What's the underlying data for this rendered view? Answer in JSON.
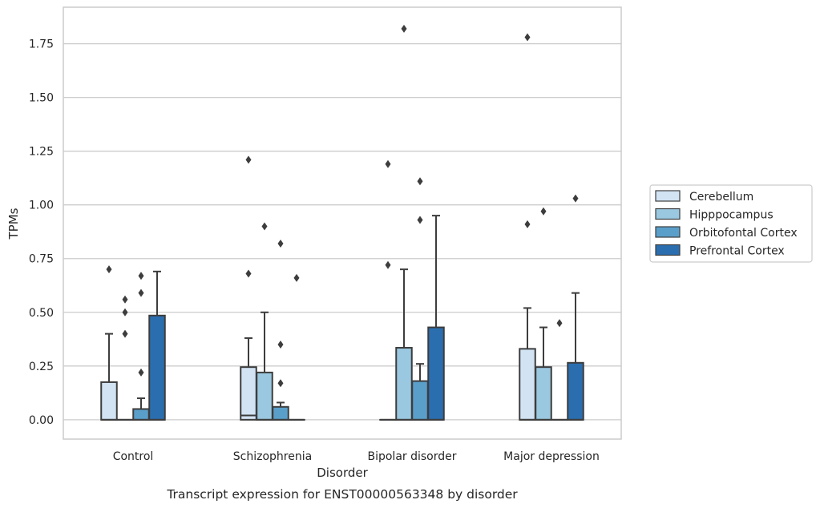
{
  "chart_data": {
    "type": "boxplot",
    "caption": "Transcript expression for ENST00000563348 by disorder",
    "xlabel": "Disorder",
    "ylabel": "TPMs",
    "ylim": [
      -0.09,
      1.92
    ],
    "yticks": [
      0.0,
      0.25,
      0.5,
      0.75,
      1.0,
      1.25,
      1.5,
      1.75
    ],
    "ytick_labels": [
      "0.00",
      "0.25",
      "0.50",
      "0.75",
      "1.00",
      "1.25",
      "1.50",
      "1.75"
    ],
    "grid": true,
    "legend_position": "right",
    "categories": [
      "Control",
      "Schizophrenia",
      "Bipolar disorder",
      "Major depression"
    ],
    "series": [
      {
        "name": "Cerebellum",
        "color": "#d2e3f3",
        "boxes": [
          {
            "q1": 0.0,
            "median": 0.0,
            "q3": 0.175,
            "whisker_low": 0.0,
            "whisker_high": 0.4,
            "outliers": [
              0.7
            ]
          },
          {
            "q1": 0.0,
            "median": 0.02,
            "q3": 0.245,
            "whisker_low": 0.0,
            "whisker_high": 0.38,
            "outliers": [
              1.21,
              0.68
            ]
          },
          {
            "q1": 0.0,
            "median": 0.0,
            "q3": 0.0,
            "whisker_low": 0.0,
            "whisker_high": 0.0,
            "outliers": [
              1.19,
              0.72
            ]
          },
          {
            "q1": 0.0,
            "median": 0.0,
            "q3": 0.33,
            "whisker_low": 0.0,
            "whisker_high": 0.52,
            "outliers": [
              1.78,
              0.91
            ]
          }
        ]
      },
      {
        "name": "Hipppocampus",
        "color": "#9ac8e0",
        "boxes": [
          {
            "q1": 0.0,
            "median": 0.0,
            "q3": 0.0,
            "whisker_low": 0.0,
            "whisker_high": 0.0,
            "outliers": [
              0.56,
              0.5,
              0.4
            ]
          },
          {
            "q1": 0.0,
            "median": 0.0,
            "q3": 0.22,
            "whisker_low": 0.0,
            "whisker_high": 0.5,
            "outliers": [
              0.9
            ]
          },
          {
            "q1": 0.0,
            "median": 0.0,
            "q3": 0.335,
            "whisker_low": 0.0,
            "whisker_high": 0.7,
            "outliers": [
              1.82
            ]
          },
          {
            "q1": 0.0,
            "median": 0.0,
            "q3": 0.245,
            "whisker_low": 0.0,
            "whisker_high": 0.43,
            "outliers": [
              0.97
            ]
          }
        ]
      },
      {
        "name": "Orbitofontal Cortex",
        "color": "#5a9fca",
        "boxes": [
          {
            "q1": 0.0,
            "median": 0.0,
            "q3": 0.05,
            "whisker_low": 0.0,
            "whisker_high": 0.1,
            "outliers": [
              0.67,
              0.59,
              0.22
            ]
          },
          {
            "q1": 0.0,
            "median": 0.0,
            "q3": 0.06,
            "whisker_low": 0.0,
            "whisker_high": 0.08,
            "outliers": [
              0.82,
              0.35,
              0.17
            ]
          },
          {
            "q1": 0.0,
            "median": 0.0,
            "q3": 0.18,
            "whisker_low": 0.0,
            "whisker_high": 0.26,
            "outliers": [
              1.11,
              0.93
            ]
          },
          {
            "q1": 0.0,
            "median": 0.0,
            "q3": 0.0,
            "whisker_low": 0.0,
            "whisker_high": 0.0,
            "outliers": [
              0.45
            ]
          }
        ]
      },
      {
        "name": "Prefrontal Cortex",
        "color": "#2a6eaf",
        "boxes": [
          {
            "q1": 0.0,
            "median": 0.0,
            "q3": 0.485,
            "whisker_low": 0.0,
            "whisker_high": 0.69,
            "outliers": []
          },
          {
            "q1": 0.0,
            "median": 0.0,
            "q3": 0.0,
            "whisker_low": 0.0,
            "whisker_high": 0.0,
            "outliers": [
              0.66
            ]
          },
          {
            "q1": 0.0,
            "median": 0.0,
            "q3": 0.43,
            "whisker_low": 0.0,
            "whisker_high": 0.95,
            "outliers": []
          },
          {
            "q1": 0.0,
            "median": 0.0,
            "q3": 0.265,
            "whisker_low": 0.0,
            "whisker_high": 0.59,
            "outliers": [
              1.03
            ]
          }
        ]
      }
    ]
  }
}
